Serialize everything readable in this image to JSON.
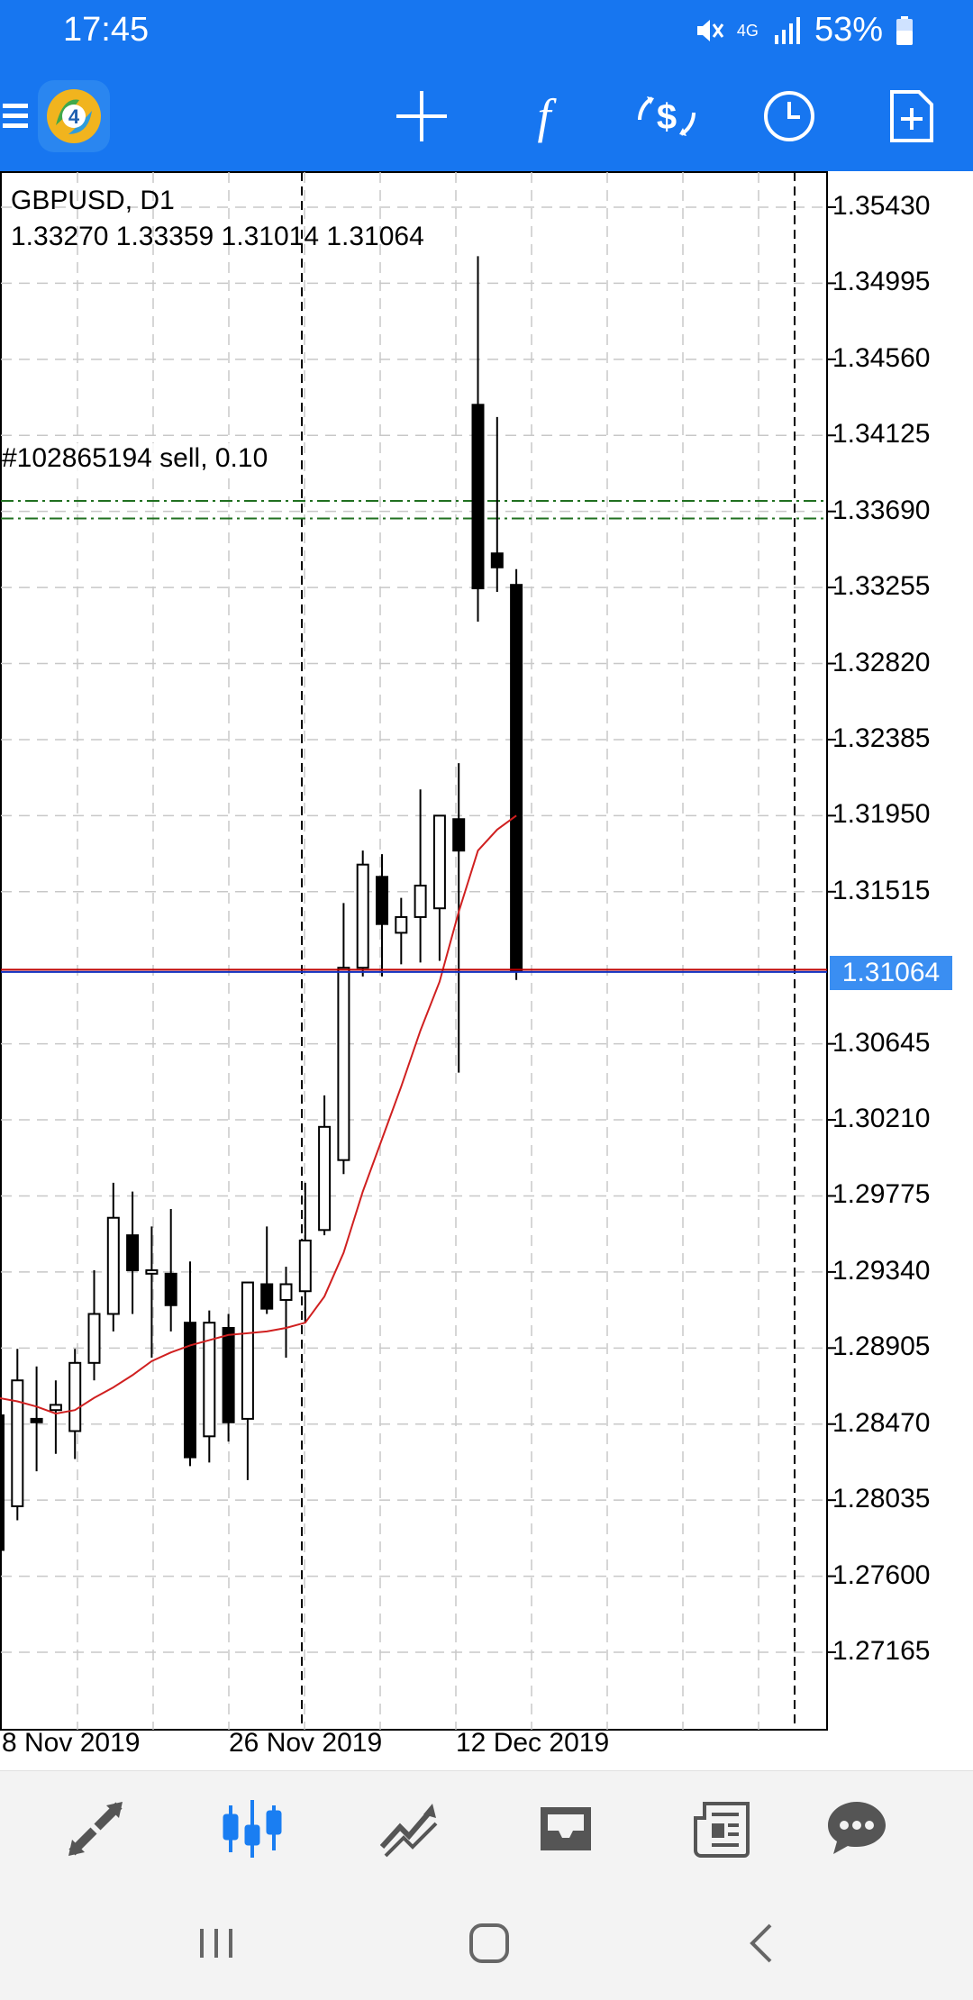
{
  "status_bar": {
    "time": "17:45",
    "network": "4G",
    "battery": "53%",
    "icons": [
      "mute-icon",
      "network-4g-icon",
      "signal-icon",
      "battery-icon"
    ]
  },
  "toolbar": {
    "app_icon": "metatrader-logo-icon",
    "buttons": [
      "menu-icon",
      "crosshair-icon",
      "indicators-icon",
      "trade-icon",
      "timeframe-icon",
      "new-order-icon"
    ]
  },
  "chart": {
    "symbol_label": "GBPUSD, D1",
    "ohlc_label": "1.33270 1.33359 1.31014 1.31064",
    "order_label": "#102865194 sell, 0.10",
    "current_price": "1.31064",
    "price_ticks": [
      "1.35430",
      "1.34995",
      "1.34560",
      "1.34125",
      "1.33690",
      "1.33255",
      "1.32820",
      "1.32385",
      "1.31950",
      "1.31515",
      "1.30645",
      "1.30210",
      "1.29775",
      "1.29340",
      "1.28905",
      "1.28470",
      "1.28035",
      "1.27600",
      "1.27165"
    ],
    "date_ticks": [
      "8 Nov 2019",
      "26 Nov 2019",
      "12 Dec 2019"
    ],
    "colors": {
      "ma_line": "#d02020",
      "bid_line": "#c00000",
      "ask_line": "#1030c0",
      "order_line": "#207020",
      "badge": "#3a8ef2"
    }
  },
  "chart_data": {
    "type": "candlestick",
    "symbol": "GBPUSD",
    "timeframe": "D1",
    "ylim": [
      1.27,
      1.3565
    ],
    "series": [
      {
        "name": "price",
        "candles": [
          {
            "o": 1.2852,
            "h": 1.288,
            "l": 1.2765,
            "c": 1.2775
          },
          {
            "o": 1.28,
            "h": 1.289,
            "l": 1.2792,
            "c": 1.2872
          },
          {
            "o": 1.285,
            "h": 1.288,
            "l": 1.282,
            "c": 1.2848
          },
          {
            "o": 1.2855,
            "h": 1.2872,
            "l": 1.283,
            "c": 1.2858
          },
          {
            "o": 1.2843,
            "h": 1.289,
            "l": 1.2827,
            "c": 1.2882
          },
          {
            "o": 1.2882,
            "h": 1.2935,
            "l": 1.2872,
            "c": 1.291
          },
          {
            "o": 1.291,
            "h": 1.2985,
            "l": 1.29,
            "c": 1.2965
          },
          {
            "o": 1.2955,
            "h": 1.298,
            "l": 1.291,
            "c": 1.2935
          },
          {
            "o": 1.2933,
            "h": 1.296,
            "l": 1.2885,
            "c": 1.2935
          },
          {
            "o": 1.2933,
            "h": 1.297,
            "l": 1.29,
            "c": 1.2915
          },
          {
            "o": 1.2905,
            "h": 1.294,
            "l": 1.2823,
            "c": 1.2828
          },
          {
            "o": 1.284,
            "h": 1.2912,
            "l": 1.2825,
            "c": 1.2905
          },
          {
            "o": 1.2902,
            "h": 1.291,
            "l": 1.2837,
            "c": 1.2848
          },
          {
            "o": 1.285,
            "h": 1.2925,
            "l": 1.2815,
            "c": 1.2928
          },
          {
            "o": 1.2927,
            "h": 1.296,
            "l": 1.291,
            "c": 1.2913
          },
          {
            "o": 1.2918,
            "h": 1.2937,
            "l": 1.2885,
            "c": 1.2927
          },
          {
            "o": 1.2923,
            "h": 1.2985,
            "l": 1.2905,
            "c": 1.2952
          },
          {
            "o": 1.2958,
            "h": 1.3035,
            "l": 1.2955,
            "c": 1.3017
          },
          {
            "o": 1.2998,
            "h": 1.3145,
            "l": 1.299,
            "c": 1.3108
          },
          {
            "o": 1.3108,
            "h": 1.3175,
            "l": 1.3103,
            "c": 1.3167
          },
          {
            "o": 1.316,
            "h": 1.3173,
            "l": 1.3103,
            "c": 1.3133
          },
          {
            "o": 1.3128,
            "h": 1.3148,
            "l": 1.311,
            "c": 1.3137
          },
          {
            "o": 1.3137,
            "h": 1.321,
            "l": 1.3111,
            "c": 1.3155
          },
          {
            "o": 1.3142,
            "h": 1.3195,
            "l": 1.3112,
            "c": 1.3195
          },
          {
            "o": 1.3193,
            "h": 1.3225,
            "l": 1.3048,
            "c": 1.3175
          },
          {
            "o": 1.343,
            "h": 1.3515,
            "l": 1.3306,
            "c": 1.3325
          },
          {
            "o": 1.3345,
            "h": 1.3423,
            "l": 1.3323,
            "c": 1.3337
          },
          {
            "o": 1.3327,
            "h": 1.3336,
            "l": 1.3101,
            "c": 1.3106
          }
        ]
      },
      {
        "name": "moving-average",
        "values": [
          1.2862,
          1.286,
          1.2857,
          1.2853,
          1.2855,
          1.2862,
          1.2868,
          1.2875,
          1.2883,
          1.2888,
          1.2892,
          1.2895,
          1.2898,
          1.2899,
          1.29,
          1.2902,
          1.2905,
          1.292,
          1.2945,
          1.298,
          1.301,
          1.304,
          1.3072,
          1.31,
          1.314,
          1.3175,
          1.3187,
          1.3195
        ]
      }
    ],
    "lines": {
      "current_price": 1.31064,
      "order_sell": 1.3375,
      "order_sl": 1.3365
    },
    "grid": true
  },
  "bottom_nav": {
    "items": [
      "quotes-icon",
      "chart-icon",
      "trade-icon",
      "history-icon",
      "news-icon",
      "chat-icon"
    ],
    "active": "chart-icon"
  },
  "system_nav": [
    "recents-icon",
    "home-icon",
    "back-icon"
  ]
}
